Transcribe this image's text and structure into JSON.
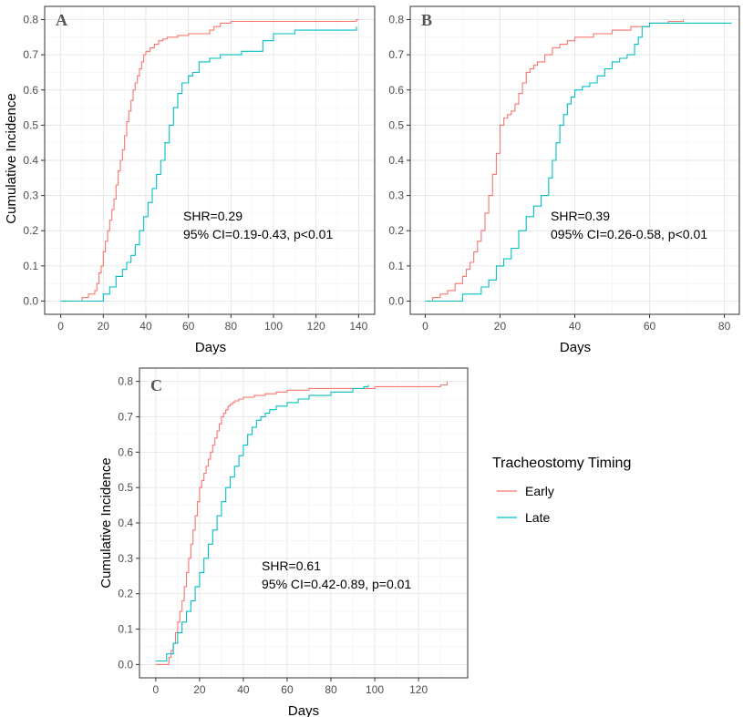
{
  "legend": {
    "title": "Tracheostomy Timing",
    "items": [
      {
        "label": "Early",
        "color": "#F8766D"
      },
      {
        "label": "Late",
        "color": "#00BFC4"
      }
    ]
  },
  "chart_data": [
    {
      "type": "line",
      "panel": "A",
      "xlabel": "Days",
      "ylabel": "Cumulative Incidence",
      "xlim": [
        0,
        140
      ],
      "ylim": [
        0,
        0.8
      ],
      "xticks": [
        0,
        20,
        40,
        60,
        80,
        100,
        120,
        140
      ],
      "yticks": [
        0.0,
        0.1,
        0.2,
        0.3,
        0.4,
        0.5,
        0.6,
        0.7,
        0.8
      ],
      "annotation": [
        "SHR=0.29",
        "95% CI=0.19-0.43, p<0.01"
      ],
      "series": [
        {
          "name": "Early",
          "x": [
            0,
            10,
            13,
            16,
            17,
            18,
            19,
            20,
            21,
            22,
            23,
            24,
            25,
            26,
            27,
            28,
            29,
            30,
            31,
            32,
            33,
            34,
            35,
            36,
            37,
            38,
            39,
            40,
            42,
            44,
            46,
            48,
            50,
            55,
            60,
            70,
            72,
            75,
            80,
            100,
            139,
            140
          ],
          "y": [
            0,
            0.01,
            0.02,
            0.03,
            0.05,
            0.08,
            0.1,
            0.14,
            0.17,
            0.2,
            0.23,
            0.26,
            0.29,
            0.33,
            0.37,
            0.4,
            0.43,
            0.47,
            0.51,
            0.54,
            0.57,
            0.6,
            0.62,
            0.64,
            0.66,
            0.68,
            0.7,
            0.71,
            0.72,
            0.73,
            0.74,
            0.745,
            0.75,
            0.755,
            0.76,
            0.77,
            0.78,
            0.79,
            0.795,
            0.795,
            0.8,
            0.8
          ]
        },
        {
          "name": "Late",
          "x": [
            0,
            20,
            23,
            26,
            29,
            31,
            33,
            35,
            37,
            39,
            41,
            43,
            45,
            47,
            49,
            51,
            53,
            55,
            57,
            60,
            62,
            65,
            70,
            75,
            85,
            95,
            100,
            110,
            139
          ],
          "y": [
            0,
            0.02,
            0.04,
            0.07,
            0.09,
            0.11,
            0.13,
            0.16,
            0.2,
            0.24,
            0.28,
            0.32,
            0.36,
            0.4,
            0.45,
            0.5,
            0.55,
            0.59,
            0.62,
            0.64,
            0.65,
            0.68,
            0.69,
            0.7,
            0.71,
            0.74,
            0.76,
            0.77,
            0.78
          ]
        }
      ]
    },
    {
      "type": "line",
      "panel": "B",
      "xlabel": "Days",
      "ylabel": "",
      "xlim": [
        0,
        80
      ],
      "ylim": [
        0,
        0.8
      ],
      "xticks": [
        0,
        20,
        40,
        60,
        80
      ],
      "yticks": [
        0.0,
        0.1,
        0.2,
        0.3,
        0.4,
        0.5,
        0.6,
        0.7,
        0.8
      ],
      "annotation": [
        "SHR=0.39",
        "095% CI=0.26-0.58, p<0.01"
      ],
      "series": [
        {
          "name": "Early",
          "x": [
            0,
            2,
            4,
            6,
            8,
            10,
            11,
            12,
            13,
            14,
            15,
            16,
            17,
            18,
            19,
            20,
            21,
            22,
            23,
            24,
            25,
            26,
            27,
            28,
            29,
            30,
            32,
            34,
            36,
            38,
            40,
            45,
            50,
            55,
            60,
            65,
            69
          ],
          "y": [
            0,
            0.01,
            0.02,
            0.03,
            0.05,
            0.07,
            0.09,
            0.11,
            0.14,
            0.17,
            0.2,
            0.25,
            0.3,
            0.36,
            0.42,
            0.5,
            0.52,
            0.53,
            0.54,
            0.56,
            0.59,
            0.62,
            0.65,
            0.66,
            0.67,
            0.68,
            0.7,
            0.72,
            0.73,
            0.74,
            0.75,
            0.76,
            0.77,
            0.78,
            0.79,
            0.795,
            0.8
          ]
        },
        {
          "name": "Late",
          "x": [
            0,
            10,
            15,
            17,
            19,
            21,
            23,
            25,
            27,
            29,
            31,
            33,
            34,
            35,
            36,
            37,
            38,
            39,
            40,
            42,
            44,
            46,
            48,
            50,
            52,
            54,
            56,
            57,
            58,
            60,
            82
          ],
          "y": [
            0,
            0.02,
            0.04,
            0.06,
            0.1,
            0.12,
            0.15,
            0.2,
            0.24,
            0.27,
            0.3,
            0.35,
            0.4,
            0.45,
            0.5,
            0.53,
            0.56,
            0.58,
            0.6,
            0.61,
            0.62,
            0.64,
            0.66,
            0.68,
            0.69,
            0.7,
            0.73,
            0.75,
            0.78,
            0.79,
            0.79
          ]
        }
      ]
    },
    {
      "type": "line",
      "panel": "C",
      "xlabel": "Days",
      "ylabel": "Cumulative Incidence",
      "xlim": [
        0,
        135
      ],
      "ylim": [
        0,
        0.8
      ],
      "xticks": [
        0,
        20,
        40,
        60,
        80,
        100,
        120
      ],
      "yticks": [
        0.0,
        0.1,
        0.2,
        0.3,
        0.4,
        0.5,
        0.6,
        0.7,
        0.8
      ],
      "annotation": [
        "SHR=0.61",
        "95% CI=0.42-0.89, p=0.01"
      ],
      "series": [
        {
          "name": "Early",
          "x": [
            0,
            6,
            7,
            8,
            9,
            10,
            11,
            12,
            13,
            14,
            15,
            16,
            17,
            18,
            19,
            20,
            21,
            22,
            23,
            24,
            25,
            26,
            27,
            28,
            29,
            30,
            31,
            32,
            33,
            34,
            35,
            36,
            38,
            40,
            45,
            50,
            55,
            60,
            70,
            90,
            100,
            130,
            133
          ],
          "y": [
            0,
            0.02,
            0.04,
            0.06,
            0.09,
            0.12,
            0.15,
            0.18,
            0.22,
            0.26,
            0.3,
            0.34,
            0.38,
            0.42,
            0.46,
            0.5,
            0.52,
            0.54,
            0.56,
            0.58,
            0.6,
            0.62,
            0.64,
            0.66,
            0.68,
            0.7,
            0.71,
            0.72,
            0.73,
            0.735,
            0.74,
            0.745,
            0.75,
            0.755,
            0.76,
            0.765,
            0.77,
            0.775,
            0.78,
            0.78,
            0.785,
            0.79,
            0.8
          ]
        },
        {
          "name": "Late",
          "x": [
            0,
            5,
            8,
            10,
            12,
            14,
            16,
            18,
            20,
            22,
            24,
            26,
            28,
            30,
            32,
            34,
            36,
            38,
            40,
            42,
            44,
            46,
            48,
            50,
            52,
            55,
            60,
            65,
            70,
            80,
            90,
            95,
            97
          ],
          "y": [
            0.01,
            0.03,
            0.06,
            0.09,
            0.12,
            0.15,
            0.18,
            0.22,
            0.26,
            0.3,
            0.34,
            0.38,
            0.42,
            0.46,
            0.5,
            0.53,
            0.56,
            0.59,
            0.62,
            0.65,
            0.67,
            0.69,
            0.7,
            0.71,
            0.72,
            0.73,
            0.74,
            0.75,
            0.76,
            0.77,
            0.78,
            0.785,
            0.79
          ]
        }
      ]
    }
  ]
}
